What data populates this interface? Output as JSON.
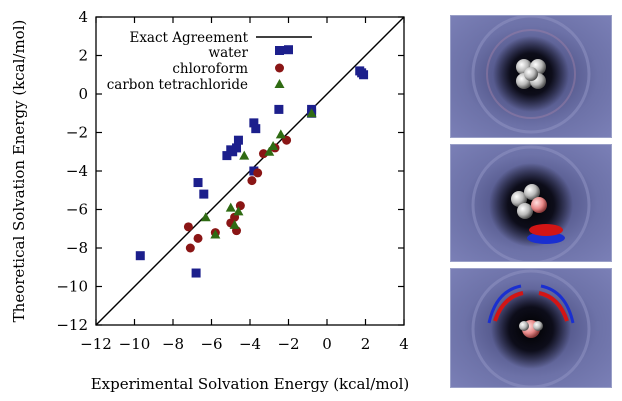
{
  "chart_data": {
    "type": "scatter",
    "xlabel": "Experimental Solvation Energy (kcal/mol)",
    "ylabel": "Theoretical Solvation Energy (kcal/mol)",
    "xlim": [
      -12,
      4
    ],
    "ylim": [
      -12,
      4
    ],
    "xticks": [
      "−12",
      "−10",
      "−8",
      "−6",
      "−4",
      "−2",
      "0",
      "2",
      "4"
    ],
    "yticks": [
      "−12",
      "−10",
      "−8",
      "−6",
      "−4",
      "−2",
      "0",
      "2",
      "4"
    ],
    "legend_position": "top-left",
    "reference_line": {
      "name": "Exact Agreement",
      "x": [
        -12,
        4
      ],
      "y": [
        -12,
        4
      ],
      "color": "#000000"
    },
    "series": [
      {
        "name": "water",
        "marker": "square",
        "color": "#1c1f8c",
        "points": [
          [
            -9.7,
            -8.4
          ],
          [
            -6.8,
            -9.3
          ],
          [
            -6.7,
            -4.6
          ],
          [
            -6.4,
            -5.2
          ],
          [
            -5.2,
            -3.2
          ],
          [
            -5.0,
            -2.9
          ],
          [
            -4.9,
            -3.0
          ],
          [
            -4.7,
            -2.8
          ],
          [
            -4.6,
            -2.4
          ],
          [
            -3.8,
            -1.5
          ],
          [
            -3.7,
            -1.8
          ],
          [
            -3.8,
            -4.0
          ],
          [
            -2.5,
            -0.8
          ],
          [
            -2.0,
            2.3
          ],
          [
            -0.8,
            -0.8
          ],
          [
            -0.8,
            -1.0
          ],
          [
            1.8,
            1.1
          ],
          [
            1.9,
            1.0
          ],
          [
            1.7,
            1.2
          ]
        ]
      },
      {
        "name": "chloroform",
        "marker": "circle",
        "color": "#8a1515",
        "points": [
          [
            -7.2,
            -6.9
          ],
          [
            -7.1,
            -8.0
          ],
          [
            -6.7,
            -7.5
          ],
          [
            -5.8,
            -7.2
          ],
          [
            -5.0,
            -6.7
          ],
          [
            -4.8,
            -6.4
          ],
          [
            -4.7,
            -7.1
          ],
          [
            -4.5,
            -5.8
          ],
          [
            -3.9,
            -4.5
          ],
          [
            -3.6,
            -4.1
          ],
          [
            -3.3,
            -3.1
          ],
          [
            -2.7,
            -2.8
          ],
          [
            -2.1,
            -2.4
          ]
        ]
      },
      {
        "name": "carbon tetrachloride",
        "marker": "triangle",
        "color": "#2f6b13",
        "points": [
          [
            -6.3,
            -6.4
          ],
          [
            -5.8,
            -7.3
          ],
          [
            -5.0,
            -5.9
          ],
          [
            -4.8,
            -6.8
          ],
          [
            -4.6,
            -6.1
          ],
          [
            -4.3,
            -3.2
          ],
          [
            -3.0,
            -3.0
          ],
          [
            -2.8,
            -2.7
          ],
          [
            -2.4,
            -2.1
          ],
          [
            -0.8,
            -1.0
          ]
        ]
      }
    ]
  },
  "panels": [
    {
      "name": "water-density-panel",
      "feature": "tight-core"
    },
    {
      "name": "chloroform-density-panel",
      "feature": "side-lobe"
    },
    {
      "name": "carbon-tetrachloride-density-panel",
      "feature": "arc-lobes"
    }
  ],
  "colors": {
    "axis": "#000000",
    "panel_bg": "#6a6fa3",
    "red_lobe": "#d21515",
    "blue_lobe": "#1a2fd0"
  }
}
